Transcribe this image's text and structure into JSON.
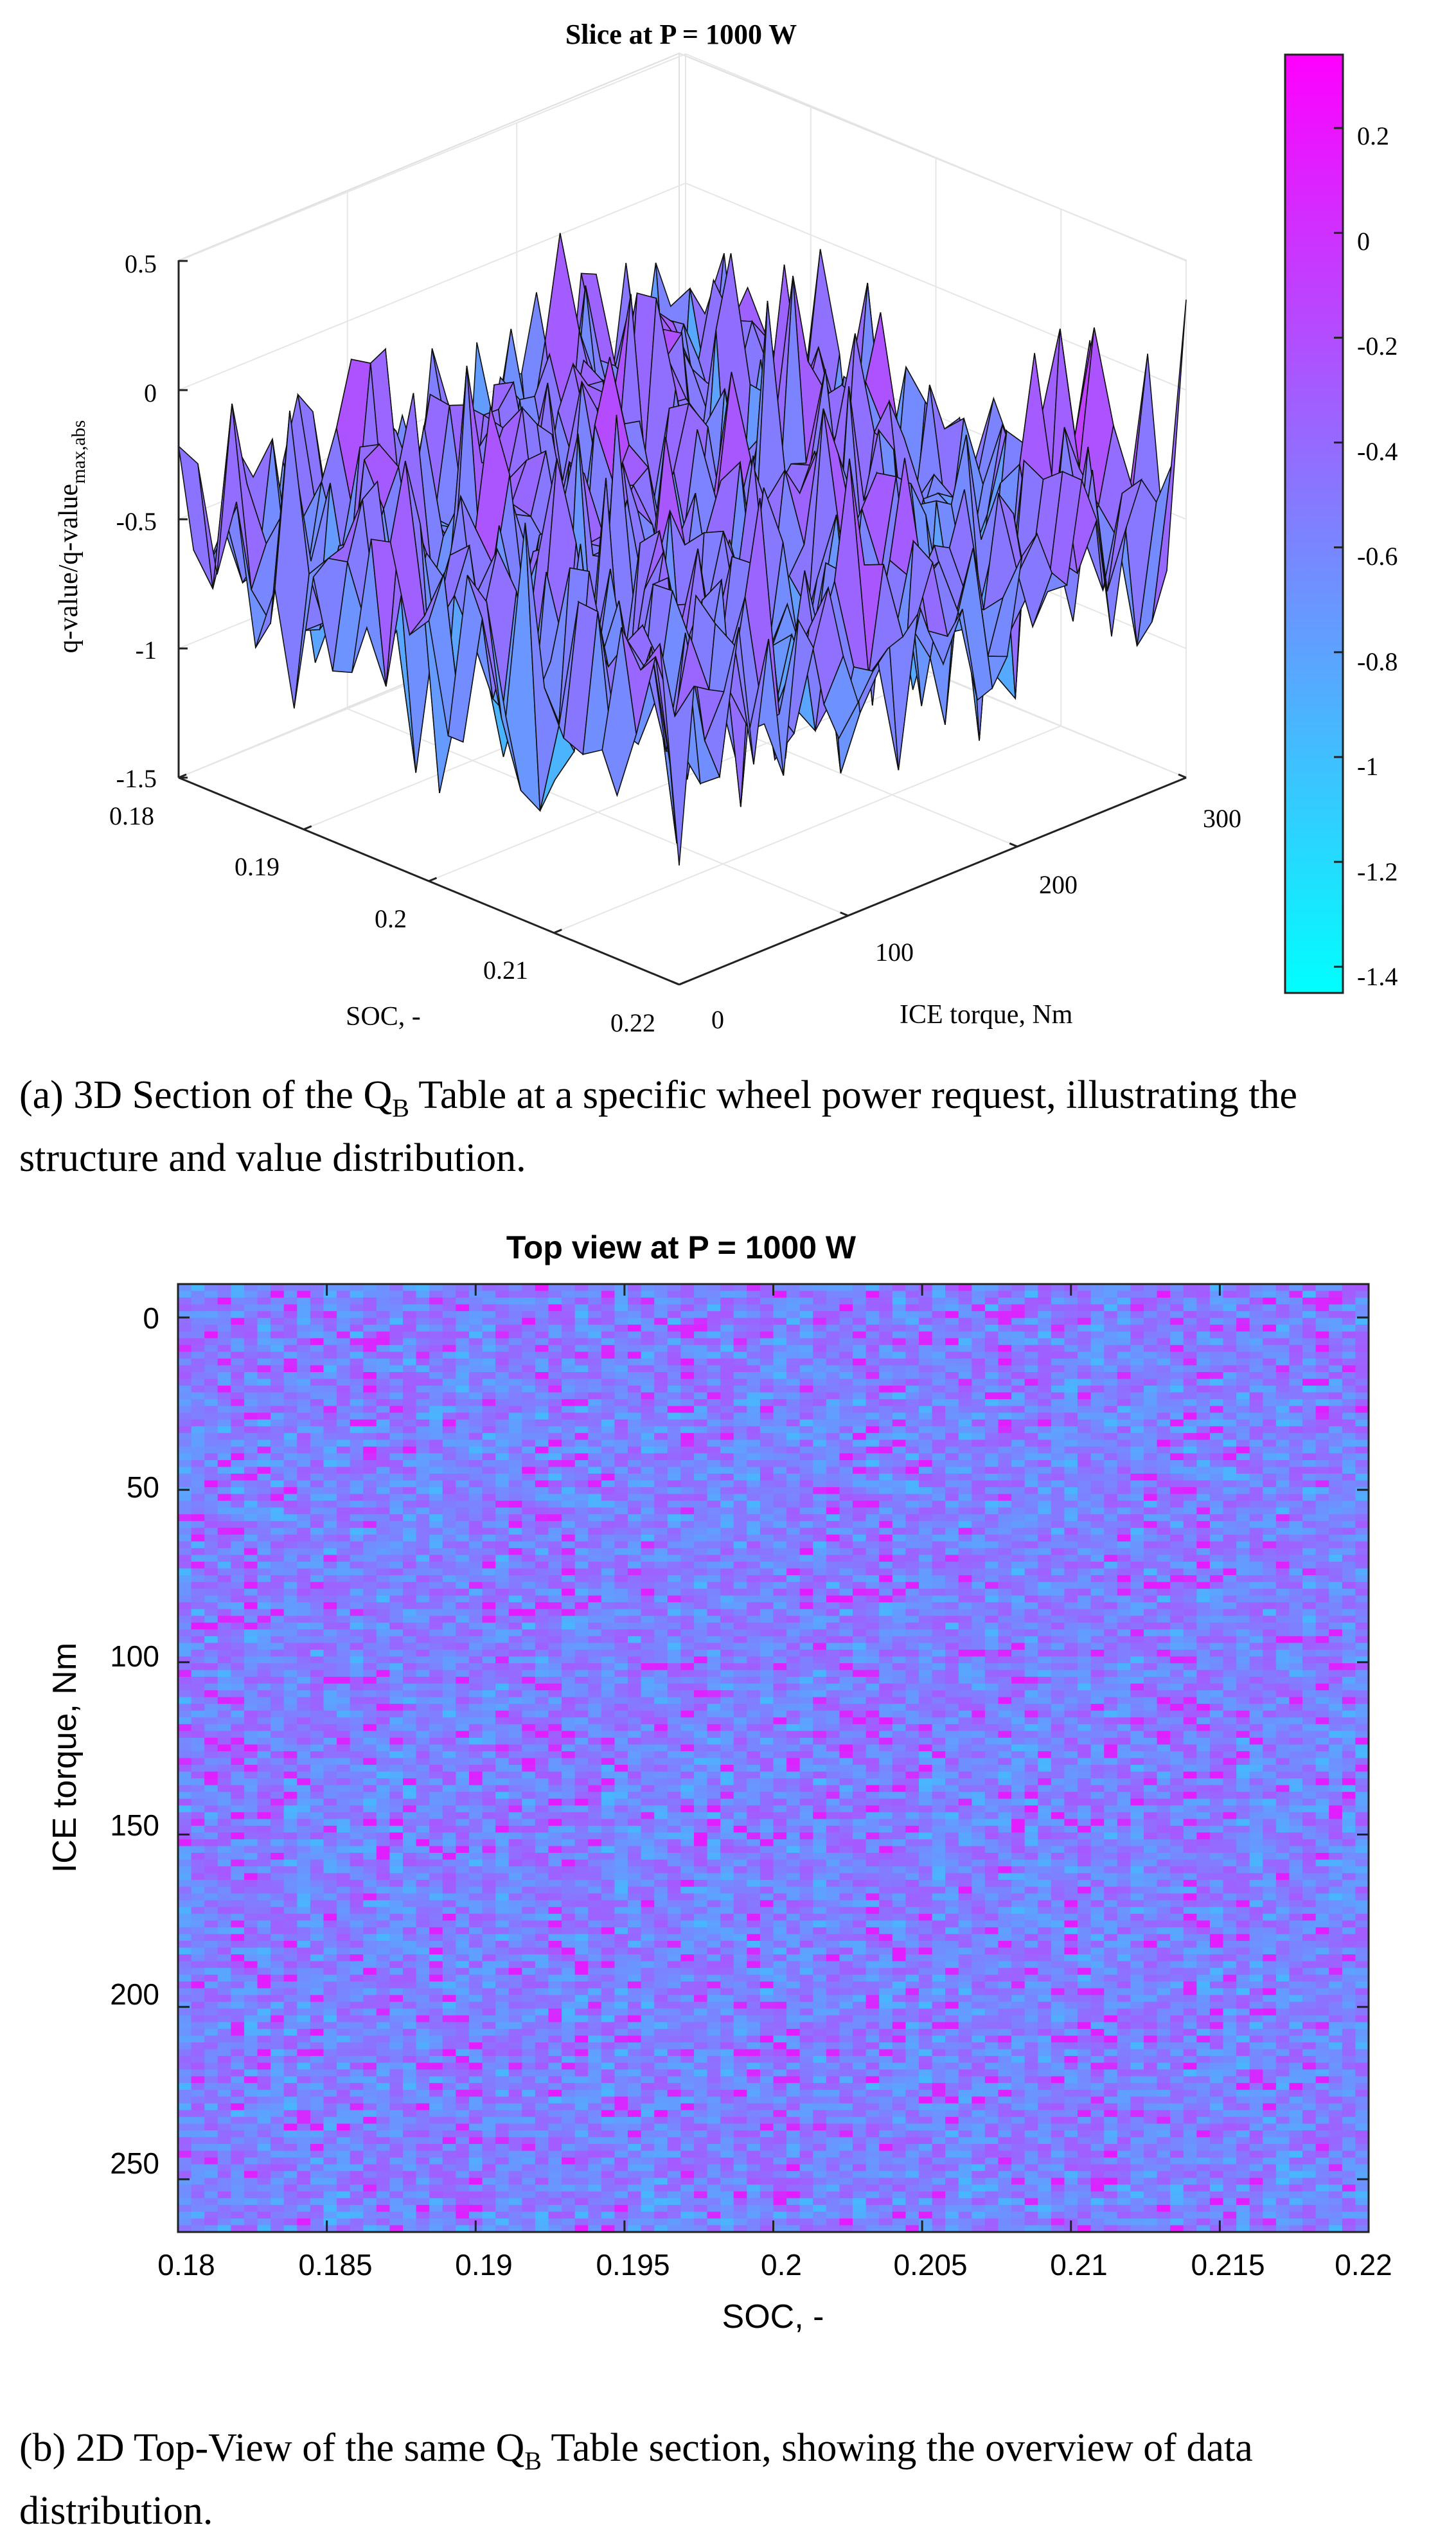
{
  "chart_data": [
    {
      "type": "surface",
      "title": "Slice at P = 1000 W",
      "xlabel": "SOC, -",
      "ylabel": "ICE torque, Nm",
      "zlabel_main": "q-value/q-value",
      "zlabel_sub": "max,abs",
      "soc_ticks": [
        "0.18",
        "0.19",
        "0.2",
        "0.21",
        "0.22"
      ],
      "torque_ticks": [
        "0",
        "100",
        "200",
        "300"
      ],
      "z_ticks": [
        "0.5",
        "0",
        "-0.5",
        "-1",
        "-1.5"
      ],
      "zlim": [
        -1.5,
        0.5
      ],
      "colorbar_ticks": [
        "0.2",
        "0",
        "-0.2",
        "-0.4",
        "-0.6",
        "-0.8",
        "-1",
        "-1.2",
        "-1.4"
      ],
      "colorbar_range": [
        -1.45,
        0.34
      ],
      "colormap": [
        "#00ffff",
        "#ff00ff"
      ]
    },
    {
      "type": "heatmap",
      "title": "Top view at P = 1000 W",
      "xlabel": "SOC, -",
      "ylabel": "ICE torque, Nm",
      "x_ticks": [
        "0.18",
        "0.185",
        "0.19",
        "0.195",
        "0.2",
        "0.205",
        "0.21",
        "0.215",
        "0.22"
      ],
      "y_ticks": [
        "0",
        "50",
        "100",
        "150",
        "200",
        "250"
      ],
      "xlim": [
        0.18,
        0.22
      ],
      "ylim": [
        0,
        275
      ]
    }
  ],
  "captions": {
    "a_prefix": "(a)  3D Section of the Q",
    "a_sub": "B",
    "a_suffix": " Table at a specific wheel power request, illustrating the structure and value distribution.",
    "b_prefix": "(b)  2D Top-View of the same Q",
    "b_sub": "B",
    "b_suffix": " Table section, showing the overview of data distribution."
  }
}
